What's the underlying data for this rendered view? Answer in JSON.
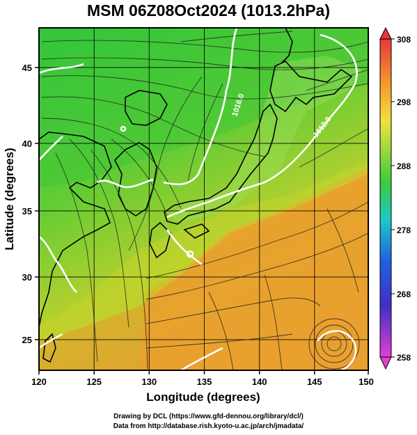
{
  "title": "MSM 06Z08Oct2024 (1013.2hPa)",
  "map": {
    "lon_range": [
      120,
      150
    ],
    "lat_range": [
      22.5,
      48
    ],
    "x_ticks": [
      "120",
      "125",
      "130",
      "135",
      "140",
      "145",
      "150"
    ],
    "y_ticks": [
      "25",
      "30",
      "35",
      "40",
      "45"
    ],
    "xlabel": "Longitude (degrees)",
    "ylabel": "Latitude  (degrees)",
    "isobar_labels": [
      "1016.0",
      "1012.0"
    ],
    "colors": {
      "land_outline": "#000000",
      "isobar": "#ffffff",
      "warm": "#f0a030",
      "mid": "#8ad23a",
      "cool": "#2fc23a"
    }
  },
  "colorbar": {
    "labels": [
      "308",
      "298",
      "288",
      "278",
      "268",
      "258"
    ],
    "colors": [
      "#e8383a",
      "#f59a2c",
      "#f0e23c",
      "#3ccc3c",
      "#1cc8c8",
      "#2050d8",
      "#7a28c8",
      "#e040d0"
    ]
  },
  "credits": {
    "line1": "Drawing by DCL (https://www.gfd-dennou.org/library/dcl/)",
    "line2": "Data from http://database.rish.kyoto-u.ac.jp/arch/jmadata/"
  }
}
